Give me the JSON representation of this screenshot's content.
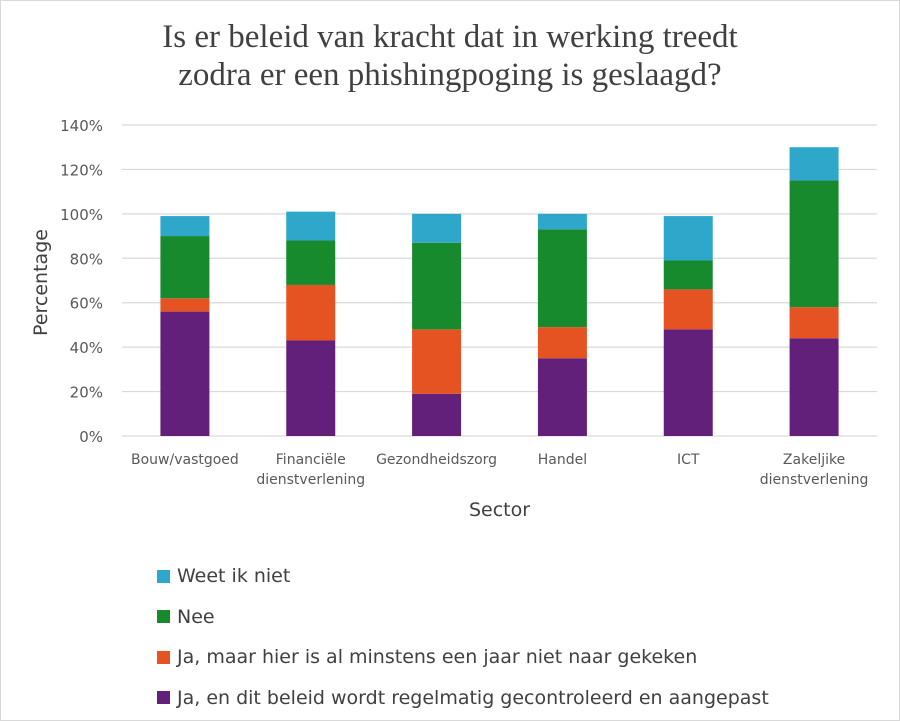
{
  "chart_data": {
    "type": "bar",
    "stacked": true,
    "title_lines": [
      "Is er beleid van kracht dat in werking treedt",
      "zodra er een phishingpoging is geslaagd?"
    ],
    "xlabel": "Sector",
    "ylabel": "Percentage",
    "ylim": [
      0,
      140
    ],
    "yticks": [
      0,
      20,
      40,
      60,
      80,
      100,
      120,
      140
    ],
    "ytick_labels": [
      "0%",
      "20%",
      "40%",
      "60%",
      "80%",
      "100%",
      "120%",
      "140%"
    ],
    "grid": true,
    "legend_position": "bottom",
    "categories": [
      [
        "Bouw/vastgoed"
      ],
      [
        "Financiële",
        "dienstverlening"
      ],
      [
        "Gezondheidszorg"
      ],
      [
        "Handel"
      ],
      [
        "ICT"
      ],
      [
        "Zakeljike",
        "dienstverlening"
      ]
    ],
    "series": [
      {
        "name": "Ja, en dit beleid wordt regelmatig gecontroleerd en aangepast",
        "color": "#63207A",
        "values": [
          56,
          43,
          19,
          35,
          48,
          44
        ]
      },
      {
        "name": "Ja, maar hier is al minstens een jaar niet naar gekeken",
        "color": "#E65322",
        "values": [
          6,
          25,
          29,
          14,
          18,
          14
        ]
      },
      {
        "name": "Nee",
        "color": "#188A2E",
        "values": [
          28,
          20,
          39,
          44,
          13,
          57
        ]
      },
      {
        "name": "Weet ik niet",
        "color": "#2EA7CB",
        "values": [
          9,
          13,
          13,
          7,
          20,
          15
        ]
      }
    ],
    "legend_order": [
      3,
      2,
      1,
      0
    ]
  }
}
